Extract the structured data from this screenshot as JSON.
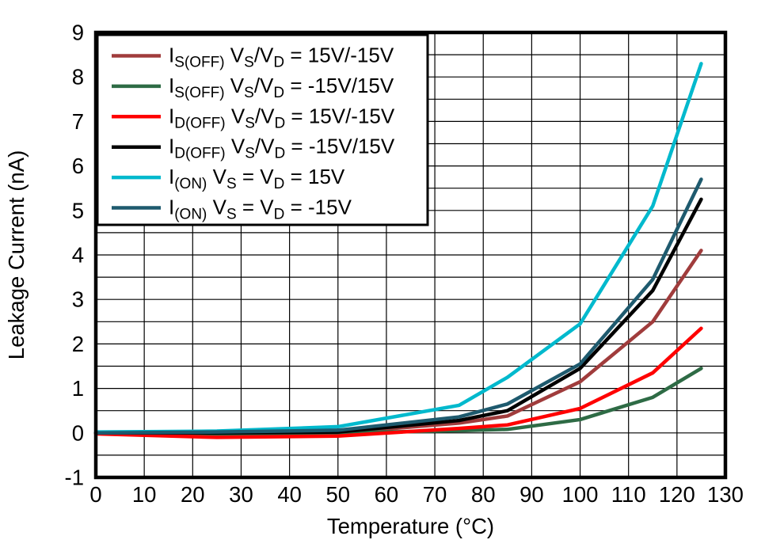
{
  "figure": {
    "background": "#ffffff",
    "frame_color": "#000000",
    "grid_color": "#000000"
  },
  "chart_data": {
    "type": "line",
    "title": "",
    "xlabel": "Temperature (°C)",
    "ylabel": "Leakage Current (nA)",
    "xlim": [
      0,
      130
    ],
    "ylim": [
      -1,
      9
    ],
    "x_ticks": [
      0,
      10,
      20,
      30,
      40,
      50,
      60,
      70,
      80,
      90,
      100,
      110,
      120,
      130
    ],
    "y_ticks": [
      -1,
      0,
      1,
      2,
      3,
      4,
      5,
      6,
      7,
      8,
      9
    ],
    "x_grid_step": 10,
    "y_grid_step": 0.5,
    "grid": true,
    "legend_position": "top-left",
    "x": [
      0,
      25,
      50,
      75,
      85,
      100,
      115,
      125
    ],
    "series": [
      {
        "name": "IS(OFF) VS/VD = 15V/-15V",
        "color": "#A03C3C",
        "values": [
          0.0,
          -0.03,
          0.0,
          0.22,
          0.38,
          1.15,
          2.5,
          4.1
        ],
        "label_segments": [
          {
            "text": "I",
            "sub": false
          },
          {
            "text": "S(OFF)",
            "sub": true
          },
          {
            "text": " V",
            "sub": false
          },
          {
            "text": "S",
            "sub": true
          },
          {
            "text": "/V",
            "sub": false
          },
          {
            "text": "D",
            "sub": true
          },
          {
            "text": " = 15V/-15V",
            "sub": false
          }
        ]
      },
      {
        "name": "IS(OFF) VS/VD = -15V/15V",
        "color": "#2E6B45",
        "values": [
          0.0,
          -0.02,
          0.0,
          0.05,
          0.08,
          0.3,
          0.8,
          1.45
        ],
        "label_segments": [
          {
            "text": "I",
            "sub": false
          },
          {
            "text": "S(OFF)",
            "sub": true
          },
          {
            "text": " V",
            "sub": false
          },
          {
            "text": "S",
            "sub": true
          },
          {
            "text": "/V",
            "sub": false
          },
          {
            "text": "D",
            "sub": true
          },
          {
            "text": " = -15V/15V",
            "sub": false
          }
        ]
      },
      {
        "name": "ID(OFF) VS/VD = 15V/-15V",
        "color": "#FF0000",
        "values": [
          -0.02,
          -0.1,
          -0.07,
          0.1,
          0.18,
          0.55,
          1.35,
          2.35
        ],
        "label_segments": [
          {
            "text": "I",
            "sub": false
          },
          {
            "text": "D(OFF)",
            "sub": true
          },
          {
            "text": " V",
            "sub": false
          },
          {
            "text": "S",
            "sub": true
          },
          {
            "text": "/V",
            "sub": false
          },
          {
            "text": "D",
            "sub": true
          },
          {
            "text": " = 15V/-15V",
            "sub": false
          }
        ]
      },
      {
        "name": "ID(OFF) VS/VD = -15V/15V",
        "color": "#000000",
        "values": [
          0.0,
          0.0,
          0.02,
          0.28,
          0.5,
          1.45,
          3.2,
          5.25
        ],
        "label_segments": [
          {
            "text": "I",
            "sub": false
          },
          {
            "text": "D(OFF)",
            "sub": true
          },
          {
            "text": " V",
            "sub": false
          },
          {
            "text": "S",
            "sub": true
          },
          {
            "text": "/V",
            "sub": false
          },
          {
            "text": "D",
            "sub": true
          },
          {
            "text": " = -15V/15V",
            "sub": false
          }
        ]
      },
      {
        "name": "I(ON) VS = VD = 15V",
        "color": "#00B9CD",
        "values": [
          0.02,
          0.04,
          0.14,
          0.62,
          1.25,
          2.45,
          5.1,
          8.3
        ],
        "label_segments": [
          {
            "text": "I",
            "sub": false
          },
          {
            "text": "(ON)",
            "sub": true
          },
          {
            "text": " V",
            "sub": false
          },
          {
            "text": "S",
            "sub": true
          },
          {
            "text": " = V",
            "sub": false
          },
          {
            "text": "D",
            "sub": true
          },
          {
            "text": " = 15V",
            "sub": false
          }
        ]
      },
      {
        "name": "I(ON) VS = VD = -15V",
        "color": "#1E5A6E",
        "values": [
          0.0,
          0.02,
          0.06,
          0.36,
          0.65,
          1.55,
          3.45,
          5.7
        ],
        "label_segments": [
          {
            "text": "I",
            "sub": false
          },
          {
            "text": "(ON)",
            "sub": true
          },
          {
            "text": " V",
            "sub": false
          },
          {
            "text": "S",
            "sub": true
          },
          {
            "text": " = V",
            "sub": false
          },
          {
            "text": "D",
            "sub": true
          },
          {
            "text": " = -15V",
            "sub": false
          }
        ]
      }
    ]
  }
}
